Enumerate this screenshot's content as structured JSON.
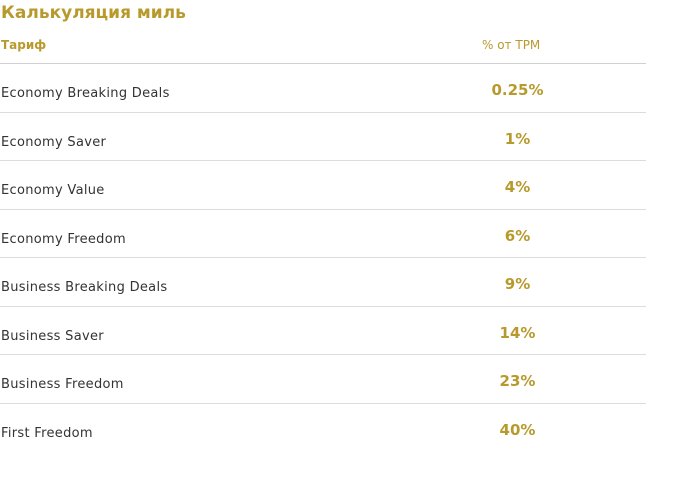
{
  "page": {
    "title": "Калькуляция миль"
  },
  "table": {
    "headers": {
      "name": "Тариф",
      "percent": "% от TPM"
    },
    "rows": [
      {
        "name": "Economy Breaking Deals",
        "percent": "0.25%"
      },
      {
        "name": "Economy Saver",
        "percent": "1%"
      },
      {
        "name": "Economy Value",
        "percent": "4%"
      },
      {
        "name": "Economy Freedom",
        "percent": "6%"
      },
      {
        "name": "Business Breaking Deals",
        "percent": "9%"
      },
      {
        "name": "Business Saver",
        "percent": "14%"
      },
      {
        "name": "Business Freedom",
        "percent": "23%"
      },
      {
        "name": "First Freedom",
        "percent": "40%"
      }
    ]
  },
  "colors": {
    "accent": "#b89a2c",
    "text": "#333333",
    "divider": "#dcdcdc"
  }
}
